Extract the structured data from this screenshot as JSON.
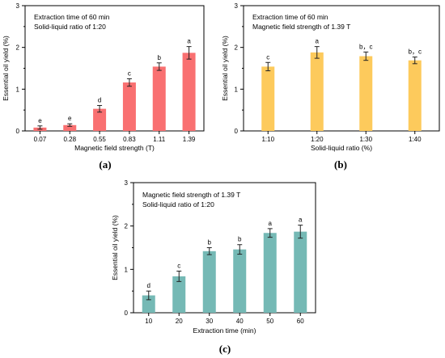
{
  "chart_data": [
    {
      "type": "bar",
      "panel_label": "(a)",
      "annotations": [
        "Extraction time of 60 min",
        "Solid-liquid ratio of 1:20"
      ],
      "xlabel": "Magnetic field strength (T)",
      "ylabel": "Essential oil yield (%)",
      "categories": [
        "0.07",
        "0.28",
        "0.55",
        "0.83",
        "1.11",
        "1.39"
      ],
      "values": [
        0.08,
        0.14,
        0.53,
        1.16,
        1.54,
        1.87
      ],
      "errors": [
        0.04,
        0.03,
        0.08,
        0.09,
        0.09,
        0.15
      ],
      "letters": [
        "e",
        "e",
        "d",
        "c",
        "b",
        "a"
      ],
      "ylim": [
        0,
        3
      ],
      "yticks": [
        "0",
        "1",
        "2",
        "3"
      ],
      "color": "#f97071",
      "grid": false
    },
    {
      "type": "bar",
      "panel_label": "(b)",
      "annotations": [
        "Extraction time of 60 min",
        "Magnetic field strength of 1.39 T"
      ],
      "xlabel": "Solid-liquid ratio (%)",
      "ylabel": "Essential oil yield (%)",
      "categories": [
        "1:10",
        "1:20",
        "1:30",
        "1:40"
      ],
      "values": [
        1.54,
        1.88,
        1.79,
        1.69
      ],
      "errors": [
        0.1,
        0.14,
        0.1,
        0.08
      ],
      "letters": [
        "c",
        "a",
        "b，c",
        "b，c"
      ],
      "ylim": [
        0,
        3
      ],
      "yticks": [
        "0",
        "1",
        "2",
        "3"
      ],
      "color": "#fdca5c",
      "grid": false
    },
    {
      "type": "bar",
      "panel_label": "(c)",
      "annotations": [
        "Magnetic field strength of 1.39 T",
        "Solid-liquid ratio of 1:20"
      ],
      "xlabel": "Extraction time (min)",
      "ylabel": "Essential oil  yield  (%)",
      "categories": [
        "10",
        "20",
        "30",
        "40",
        "50",
        "60"
      ],
      "values": [
        0.4,
        0.84,
        1.42,
        1.46,
        1.84,
        1.87
      ],
      "errors": [
        0.1,
        0.12,
        0.08,
        0.11,
        0.1,
        0.15
      ],
      "letters": [
        "d",
        "c",
        "b",
        "b",
        "a",
        "a"
      ],
      "ylim": [
        0,
        3
      ],
      "yticks": [
        "0",
        "1",
        "2",
        "3"
      ],
      "color": "#75b9b5",
      "grid": false
    }
  ]
}
